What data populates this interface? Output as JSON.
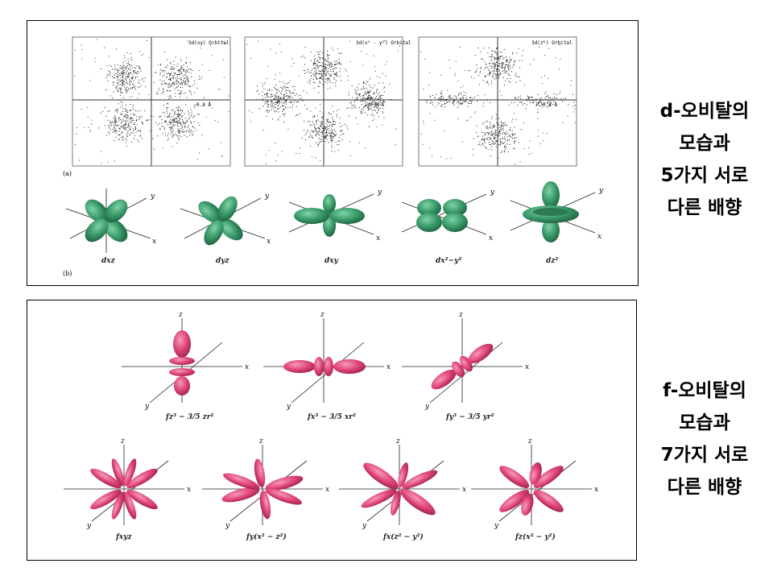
{
  "d_panel": {
    "scatter_titles": [
      "3d(xy) Orbital",
      "3d(x² - y²) Orbital",
      "3d(z²) Orbital"
    ],
    "scale_label": "0.8 Å",
    "part_a": "(a)",
    "part_b": "(b)",
    "axis_y": "y",
    "axis_x": "x",
    "orbital_labels": [
      "dxz",
      "dyz",
      "dxy",
      "dx²−y²",
      "dz²"
    ],
    "color": "#3a9a6a"
  },
  "f_panel": {
    "axis_x": "x",
    "axis_y": "y",
    "axis_z": "z",
    "orbital_labels": [
      "fz³ − 3/5 zr²",
      "fx³ − 3/5 xr²",
      "fy³ − 3/5 yr²",
      "fxyz",
      "fy(x² − z²)",
      "fx(z² − y²)",
      "fz(x² − y²)"
    ],
    "color": "#e0457a"
  },
  "side_d": [
    "d-오비탈의",
    "모습과",
    "5가지 서로",
    "다른 배향"
  ],
  "side_f": [
    "f-오비탈의",
    "모습과",
    "7가지 서로",
    "다른 배향"
  ]
}
